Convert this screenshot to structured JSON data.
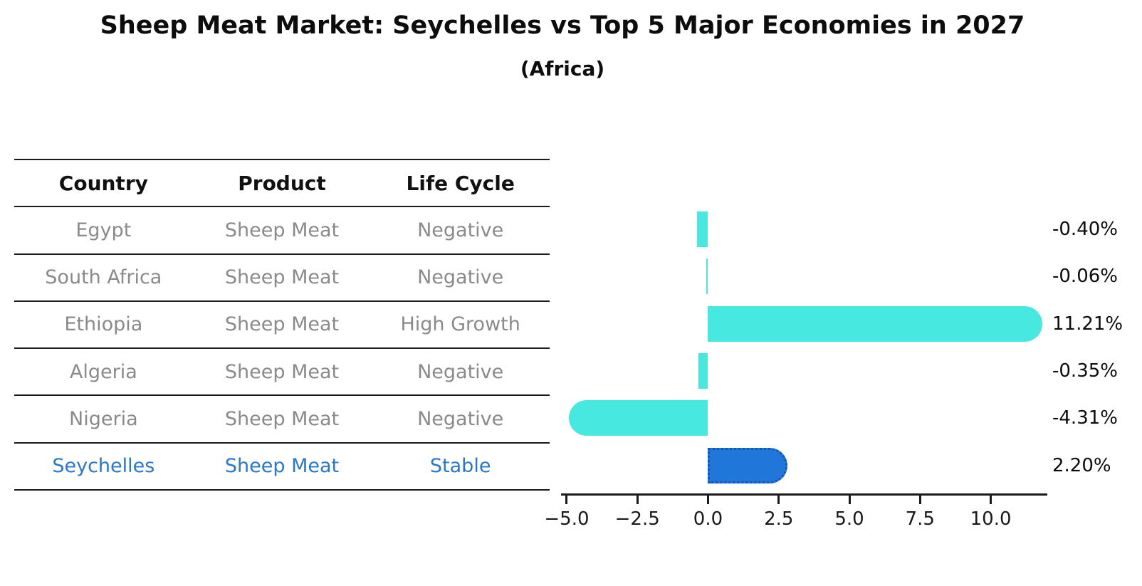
{
  "title": "Sheep Meat Market: Seychelles vs Top 5 Major Economies in 2027",
  "subtitle": "(Africa)",
  "table": {
    "headers": [
      "Country",
      "Product",
      "Life Cycle"
    ],
    "rows": [
      {
        "country": "Egypt",
        "product": "Sheep Meat",
        "life_cycle": "Negative",
        "highlight": false
      },
      {
        "country": "South Africa",
        "product": "Sheep Meat",
        "life_cycle": "Negative",
        "highlight": false
      },
      {
        "country": "Ethiopia",
        "product": "Sheep Meat",
        "life_cycle": "High Growth",
        "highlight": false
      },
      {
        "country": "Algeria",
        "product": "Sheep Meat",
        "life_cycle": "Negative",
        "highlight": false
      },
      {
        "country": "Nigeria",
        "product": "Sheep Meat",
        "life_cycle": "Negative",
        "highlight": false
      },
      {
        "country": "Seychelles",
        "product": "Sheep Meat",
        "life_cycle": "Stable",
        "highlight": true
      }
    ]
  },
  "chart_data": {
    "type": "bar",
    "orientation": "horizontal",
    "title": "Sheep Meat Market: Seychelles vs Top 5 Major Economies in 2027",
    "subtitle": "(Africa)",
    "categories": [
      "Egypt",
      "South Africa",
      "Ethiopia",
      "Algeria",
      "Nigeria",
      "Seychelles"
    ],
    "values": [
      -0.4,
      -0.06,
      11.21,
      -0.35,
      -4.31,
      2.2
    ],
    "value_labels": [
      "-0.40%",
      "-0.06%",
      "11.21%",
      "-0.35%",
      "-4.31%",
      "2.20%"
    ],
    "x_ticks": [
      -5.0,
      -2.5,
      0.0,
      2.5,
      5.0,
      7.5,
      10.0
    ],
    "x_tick_labels": [
      "−5.0",
      "−2.5",
      "0.0",
      "2.5",
      "5.0",
      "7.5",
      "10.0"
    ],
    "xlim": [
      -5.2,
      12.0
    ],
    "grid": false,
    "legend": "none",
    "bar_color": "#47e8e0",
    "highlight_bar_color": "#2176d9",
    "highlight_border_color": "#0a58c0",
    "highlight_text_color": "#2878cd",
    "highlight_index": 5
  }
}
